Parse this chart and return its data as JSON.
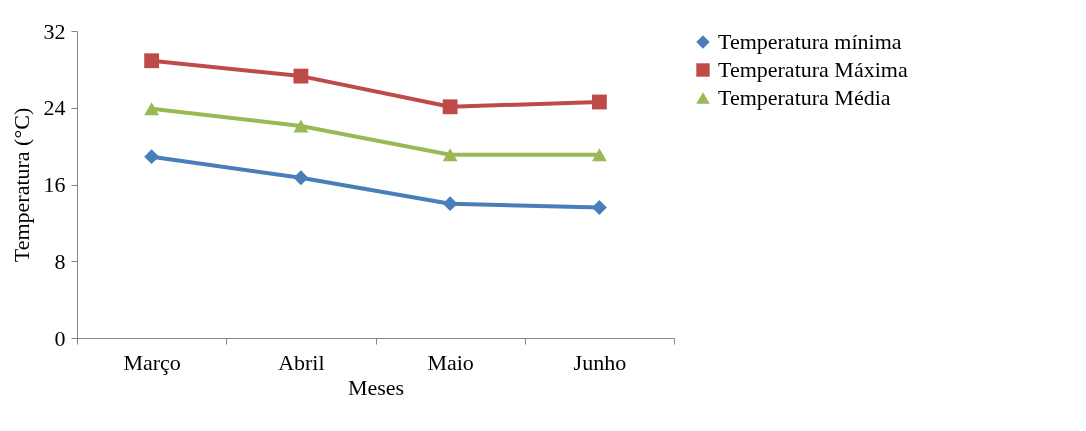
{
  "chart_data": {
    "type": "line",
    "xlabel": "Meses",
    "ylabel": "Temperatura (°C)",
    "categories": [
      "Março",
      "Abril",
      "Maio",
      "Junho"
    ],
    "series": [
      {
        "name": "Temperatura mínima",
        "color": "#4a7ebb",
        "marker": "diamond",
        "values": [
          18.9,
          16.7,
          14.0,
          13.6
        ]
      },
      {
        "name": "Temperatura Máxima",
        "color": "#be4b48",
        "marker": "square",
        "values": [
          28.9,
          27.3,
          24.1,
          24.6
        ]
      },
      {
        "name": "Temperatura Média",
        "color": "#98b954",
        "marker": "triangle",
        "values": [
          23.9,
          22.1,
          19.1,
          19.1
        ]
      }
    ],
    "ylim": [
      0,
      32
    ],
    "yticks": [
      0,
      8,
      16,
      24,
      32
    ],
    "grid": false,
    "legend": "right",
    "line_style": "solid"
  }
}
